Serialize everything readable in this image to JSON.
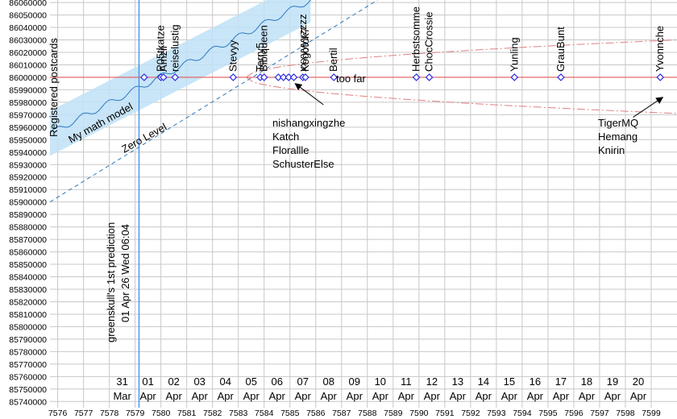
{
  "chart_data": {
    "type": "scatter",
    "title": "",
    "xlabel": "",
    "ylabel": "",
    "xlim": [
      7575.7,
      7600.0
    ],
    "ylim": [
      85735000,
      86062000
    ],
    "grid": true,
    "legend": "none",
    "x_ticks": [
      7576,
      7577,
      7578,
      7579,
      7580,
      7581,
      7582,
      7583,
      7584,
      7585,
      7586,
      7587,
      7588,
      7589,
      7590,
      7591,
      7592,
      7593,
      7594,
      7595,
      7596,
      7597,
      7598,
      7599
    ],
    "y_ticks": [
      85740000,
      85750000,
      85760000,
      85770000,
      85780000,
      85790000,
      85800000,
      85810000,
      85820000,
      85830000,
      85840000,
      85850000,
      85860000,
      85870000,
      85880000,
      85890000,
      85900000,
      85910000,
      85920000,
      85930000,
      85940000,
      85950000,
      85960000,
      85970000,
      85980000,
      85990000,
      86000000,
      86010000,
      86020000,
      86030000,
      86040000,
      86050000,
      86060000
    ],
    "date_labels": [
      {
        "x": 7578.5,
        "day": "31",
        "month": "Mar"
      },
      {
        "x": 7579.5,
        "day": "01",
        "month": "Apr"
      },
      {
        "x": 7580.5,
        "day": "02",
        "month": "Apr"
      },
      {
        "x": 7581.5,
        "day": "03",
        "month": "Apr"
      },
      {
        "x": 7582.5,
        "day": "04",
        "month": "Apr"
      },
      {
        "x": 7583.5,
        "day": "05",
        "month": "Apr"
      },
      {
        "x": 7584.5,
        "day": "06",
        "month": "Apr"
      },
      {
        "x": 7585.5,
        "day": "07",
        "month": "Apr"
      },
      {
        "x": 7586.5,
        "day": "08",
        "month": "Apr"
      },
      {
        "x": 7587.5,
        "day": "09",
        "month": "Apr"
      },
      {
        "x": 7588.5,
        "day": "10",
        "month": "Apr"
      },
      {
        "x": 7589.5,
        "day": "11",
        "month": "Apr"
      },
      {
        "x": 7590.5,
        "day": "12",
        "month": "Apr"
      },
      {
        "x": 7591.5,
        "day": "13",
        "month": "Apr"
      },
      {
        "x": 7592.5,
        "day": "14",
        "month": "Apr"
      },
      {
        "x": 7593.5,
        "day": "15",
        "month": "Apr"
      },
      {
        "x": 7594.5,
        "day": "16",
        "month": "Apr"
      },
      {
        "x": 7595.5,
        "day": "17",
        "month": "Apr"
      },
      {
        "x": 7596.5,
        "day": "18",
        "month": "Apr"
      },
      {
        "x": 7597.5,
        "day": "19",
        "month": "Apr"
      },
      {
        "x": 7598.5,
        "day": "20",
        "month": "Apr"
      }
    ],
    "target_y": 86000000,
    "prediction_x": 7579.15,
    "prediction_labels": [
      "greenskull's 1st prediction",
      "01 Apr 26 Wed 06:04"
    ],
    "ylabel_rotated": "Registered postcards",
    "model_label": "My math model",
    "zero_label": "Zero Level",
    "too_far_label": "too far",
    "model": {
      "x0": 7575.7,
      "y0": 85955000,
      "x1": 7585.8,
      "y1": 86062000,
      "band": 18000
    },
    "zero_line": {
      "x0": 7575.7,
      "y0": 85900000,
      "x1": 7588.4,
      "y1": 86062000
    },
    "upper_curve": {
      "x0": 7583.3,
      "y0": 86000000,
      "x1": 7600.0,
      "y1": 86030000
    },
    "lower_curve": {
      "x0": 7583.3,
      "y0": 86000000,
      "x1": 7600.0,
      "y1": 85971000
    },
    "points": [
      {
        "x": 7579.35,
        "y": 86000000,
        "label": ""
      },
      {
        "x": 7580.0,
        "y": 86000000,
        "label": "P05tkatze"
      },
      {
        "x": 7580.1,
        "y": 86000000,
        "label": "Amzii"
      },
      {
        "x": 7580.55,
        "y": 86000000,
        "label": "reiselustig"
      },
      {
        "x": 7582.8,
        "y": 86000000,
        "label": "Stevyy"
      },
      {
        "x": 7583.85,
        "y": 86000000,
        "label": "Terry5"
      },
      {
        "x": 7584.0,
        "y": 86000000,
        "label": "Bibiqueen"
      },
      {
        "x": 7584.55,
        "y": 86000000,
        "label": ""
      },
      {
        "x": 7584.75,
        "y": 86000000,
        "label": ""
      },
      {
        "x": 7584.95,
        "y": 86000000,
        "label": ""
      },
      {
        "x": 7585.15,
        "y": 86000000,
        "label": ""
      },
      {
        "x": 7585.5,
        "y": 86000000,
        "label": "xxxyyyyzzzz"
      },
      {
        "x": 7585.6,
        "y": 86000000,
        "label": "Kogotok7"
      },
      {
        "x": 7586.7,
        "y": 86000000,
        "label": "Bertil"
      },
      {
        "x": 7589.9,
        "y": 86000000,
        "label": "Herbstsomme"
      },
      {
        "x": 7590.4,
        "y": 86000000,
        "label": "ChocCrossie"
      },
      {
        "x": 7593.7,
        "y": 86000000,
        "label": "Yunling"
      },
      {
        "x": 7595.5,
        "y": 86000000,
        "label": "GrauBunt"
      },
      {
        "x": 7599.35,
        "y": 86000000,
        "label": "Yvonnche"
      }
    ],
    "group_left": {
      "arrow_from": [
        7586.3,
        85978000
      ],
      "arrow_to": [
        7585.2,
        85995000
      ],
      "names": [
        "nishangxingzhe",
        "Katch",
        "Florallle",
        "SchusterElse"
      ]
    },
    "group_right": {
      "arrow_from": [
        7598.3,
        85968000
      ],
      "arrow_to": [
        7599.45,
        85984000
      ],
      "names": [
        "TigerMQ",
        "Hemang",
        "Knirin"
      ]
    }
  },
  "colors": {
    "grid": "#c8c8c8",
    "target": "#e05a5a",
    "point": "#2c2ce0",
    "band": "#bfe0f7",
    "model_line": "#2a7ac0",
    "zero": "#2a7ac0",
    "curve": "#e08080",
    "prediction": "#3d8ee8"
  }
}
